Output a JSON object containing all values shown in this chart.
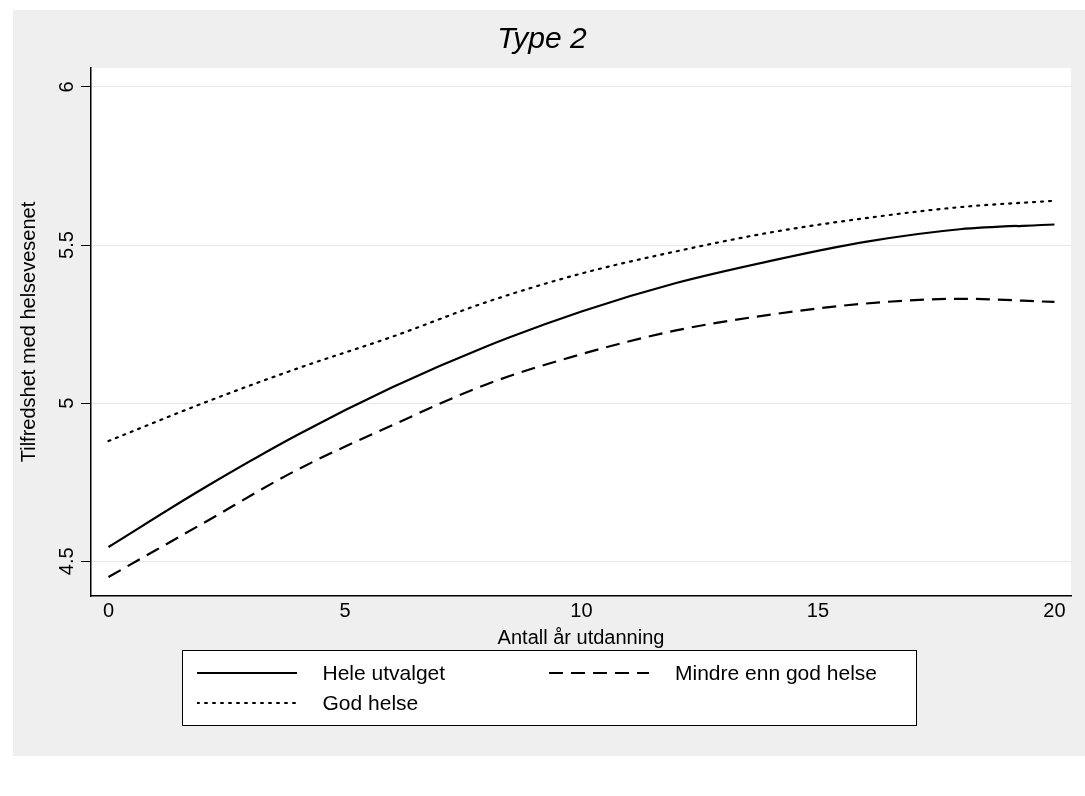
{
  "chart_data": {
    "type": "line",
    "title": "Type 2",
    "xlabel": "Antall år utdanning",
    "ylabel": "Tilfredshet med helsevesenet",
    "x": [
      0,
      2,
      4,
      6,
      8,
      10,
      12,
      14,
      16,
      18,
      20
    ],
    "xlim": [
      -0.37,
      20.35
    ],
    "xticks": [
      0,
      5,
      10,
      15,
      20
    ],
    "ylim": [
      4.39,
      6.06
    ],
    "yticks": [
      4.5,
      5,
      5.5,
      6
    ],
    "grid": "y",
    "legend": "bottom",
    "marker": "none",
    "series": [
      {
        "name": "Hele utvalget",
        "color": "#000000",
        "line_style": "solid",
        "values": [
          4.545,
          4.73,
          4.9,
          5.05,
          5.18,
          5.29,
          5.38,
          5.45,
          5.51,
          5.55,
          5.565
        ]
      },
      {
        "name": "Mindre enn god helse",
        "color": "#000000",
        "line_style": "dashed",
        "values": [
          4.45,
          4.62,
          4.79,
          4.93,
          5.06,
          5.155,
          5.23,
          5.28,
          5.315,
          5.33,
          5.32
        ]
      },
      {
        "name": "God helse",
        "color": "#000000",
        "line_style": "dotted",
        "values": [
          4.88,
          5.0,
          5.11,
          5.21,
          5.32,
          5.41,
          5.48,
          5.54,
          5.585,
          5.62,
          5.64
        ]
      }
    ]
  }
}
